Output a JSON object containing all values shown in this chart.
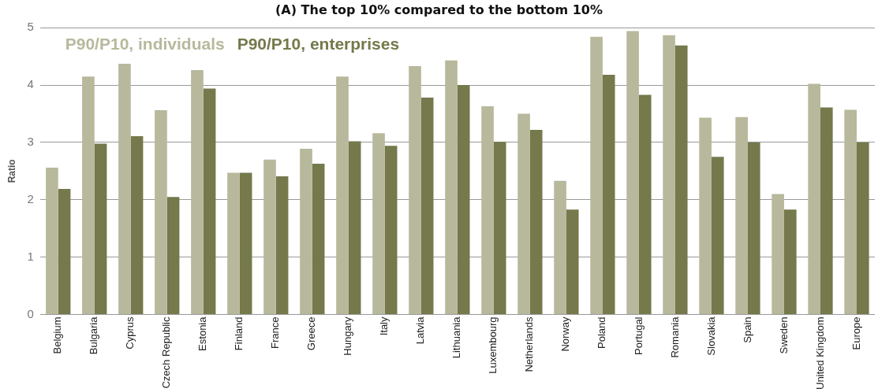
{
  "chart_data": {
    "type": "bar",
    "title": "(A) The top 10% compared to the bottom 10%",
    "ylabel": "Ratio",
    "categories": [
      "Belgium",
      "Bulgaria",
      "Cyprus",
      "Czech Republic",
      "Estonia",
      "Finland",
      "France",
      "Greece",
      "Hungary",
      "Italy",
      "Latvia",
      "Lithuania",
      "Luxembourg",
      "Netherlands",
      "Norway",
      "Poland",
      "Portugal",
      "Romania",
      "Slovakia",
      "Spain",
      "Sweden",
      "United Kingdom",
      "Europe"
    ],
    "series": [
      {
        "name": "P90/P10, individuals",
        "color": "#b8b89c",
        "values": [
          2.56,
          4.15,
          4.37,
          3.56,
          4.26,
          2.47,
          2.7,
          2.89,
          4.15,
          3.16,
          4.33,
          4.43,
          3.63,
          3.5,
          2.33,
          4.84,
          4.94,
          4.87,
          3.43,
          3.44,
          2.1,
          4.02,
          3.57
        ]
      },
      {
        "name": "P90/P10, enterprises",
        "color": "#75794b",
        "values": [
          2.19,
          2.98,
          3.11,
          2.05,
          3.94,
          2.47,
          2.41,
          2.63,
          3.02,
          2.94,
          3.78,
          4.0,
          3.01,
          3.22,
          1.83,
          4.18,
          3.83,
          4.69,
          2.75,
          3.0,
          1.83,
          3.61,
          3.0
        ]
      }
    ],
    "ylim": [
      0,
      5
    ],
    "yticks": [
      0,
      1,
      2,
      3,
      4,
      5
    ],
    "grid": "y",
    "legend": "top left"
  }
}
